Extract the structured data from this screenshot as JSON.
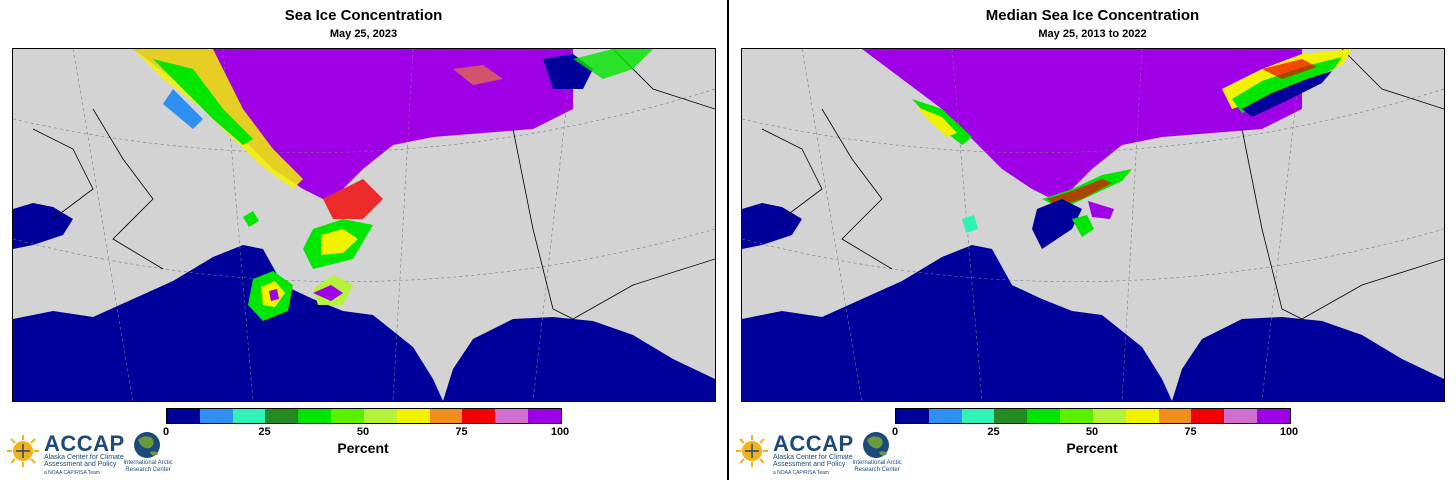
{
  "left_panel": {
    "title": "Sea Ice Concentration",
    "subtitle": "May 25, 2023"
  },
  "right_panel": {
    "title": "Median Sea Ice Concentration",
    "subtitle": "May 25, 2013 to 2022"
  },
  "colorbar": {
    "label": "Percent",
    "tick_labels": [
      "0",
      "25",
      "50",
      "75",
      "100"
    ],
    "colors": [
      "#00009b",
      "#2f8ff2",
      "#2ff2b4",
      "#228b22",
      "#00e600",
      "#58f200",
      "#b4f23c",
      "#f2f200",
      "#f28c1c",
      "#f20000",
      "#d26ed2",
      "#a000e6"
    ]
  },
  "map_colors": {
    "land": "#d3d3d3",
    "open_water": "#00009b",
    "full_ice": "#a000e6",
    "borders": "#000000"
  },
  "logo": {
    "name": "ACCAP",
    "line1": "Alaska Center for Climate",
    "line2": "Assessment and Policy",
    "line3": "a NOAA CAP/RISA Team",
    "iarc_line1": "International Arctic",
    "iarc_line2": "Research Center"
  }
}
